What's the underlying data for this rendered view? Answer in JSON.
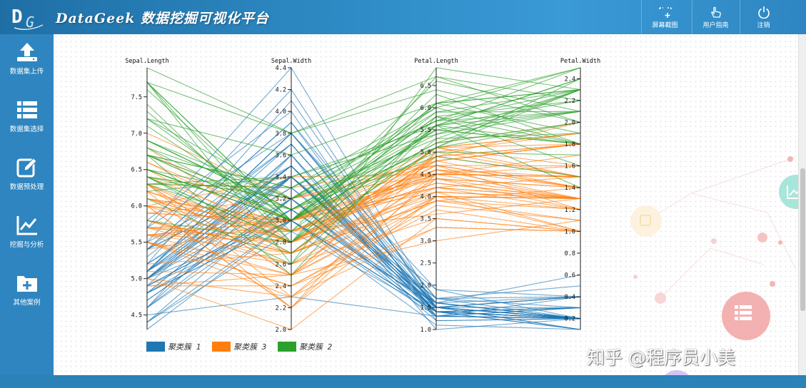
{
  "header": {
    "title": "DataGeek 数据挖掘可视化平台",
    "buttons": [
      {
        "label": "屏幕截图",
        "icon": "screenshot-icon"
      },
      {
        "label": "用户指南",
        "icon": "hand-pointer-icon"
      },
      {
        "label": "注销",
        "icon": "power-icon"
      }
    ]
  },
  "sidebar": {
    "items": [
      {
        "label": "数据集上传",
        "icon": "upload-icon"
      },
      {
        "label": "数据集选择",
        "icon": "list-icon"
      },
      {
        "label": "数据预处理",
        "icon": "edit-icon"
      },
      {
        "label": "挖掘与分析",
        "icon": "line-chart-icon"
      },
      {
        "label": "其他案例",
        "icon": "folder-plus-icon"
      }
    ]
  },
  "watermark": "知乎 @程序员小美",
  "chart_data": {
    "type": "parallel-coordinates",
    "dimensions": [
      {
        "name": "Sepal.Length",
        "range": [
          4.3,
          7.9
        ],
        "ticks": [
          4.5,
          5.0,
          5.5,
          6.0,
          6.5,
          7.0,
          7.5
        ],
        "decimals": 1
      },
      {
        "name": "Sepal.Width",
        "range": [
          2.0,
          4.4
        ],
        "ticks": [
          2.0,
          2.2,
          2.4,
          2.6,
          2.8,
          3.0,
          3.2,
          3.4,
          3.6,
          3.8,
          4.0,
          4.2,
          4.4
        ],
        "decimals": 1
      },
      {
        "name": "Petal.Length",
        "range": [
          1.0,
          6.9
        ],
        "ticks": [
          1.0,
          1.5,
          2.0,
          2.5,
          3.0,
          3.5,
          4.0,
          4.5,
          5.0,
          5.5,
          6.0,
          6.5
        ],
        "decimals": 1
      },
      {
        "name": "Petal.Width",
        "range": [
          0.1,
          2.5
        ],
        "ticks": [
          0.2,
          0.4,
          0.6,
          0.8,
          1.0,
          1.2,
          1.4,
          1.6,
          1.8,
          2.0,
          2.2,
          2.4
        ],
        "decimals": 1
      }
    ],
    "legend": [
      {
        "label": "聚类簇 1",
        "color": "#1f77b4"
      },
      {
        "label": "聚类簇 3",
        "color": "#ff7f0e"
      },
      {
        "label": "聚类簇 2",
        "color": "#2ca02c"
      }
    ],
    "series": [
      {
        "name": "聚类簇 1",
        "color": "#1f77b4",
        "values": [
          [
            5.1,
            3.5,
            1.4,
            0.2
          ],
          [
            4.9,
            3.0,
            1.4,
            0.2
          ],
          [
            4.7,
            3.2,
            1.3,
            0.2
          ],
          [
            4.6,
            3.1,
            1.5,
            0.2
          ],
          [
            5.0,
            3.6,
            1.4,
            0.2
          ],
          [
            5.4,
            3.9,
            1.7,
            0.4
          ],
          [
            4.6,
            3.4,
            1.4,
            0.3
          ],
          [
            5.0,
            3.4,
            1.5,
            0.2
          ],
          [
            4.4,
            2.9,
            1.4,
            0.2
          ],
          [
            4.9,
            3.1,
            1.5,
            0.1
          ],
          [
            5.4,
            3.7,
            1.5,
            0.2
          ],
          [
            4.8,
            3.4,
            1.6,
            0.2
          ],
          [
            4.8,
            3.0,
            1.4,
            0.1
          ],
          [
            4.3,
            3.0,
            1.1,
            0.1
          ],
          [
            5.8,
            4.0,
            1.2,
            0.2
          ],
          [
            5.7,
            4.4,
            1.5,
            0.4
          ],
          [
            5.4,
            3.9,
            1.3,
            0.4
          ],
          [
            5.1,
            3.5,
            1.4,
            0.3
          ],
          [
            5.7,
            3.8,
            1.7,
            0.3
          ],
          [
            5.1,
            3.8,
            1.5,
            0.3
          ],
          [
            5.4,
            3.4,
            1.7,
            0.2
          ],
          [
            5.1,
            3.7,
            1.5,
            0.4
          ],
          [
            4.6,
            3.6,
            1.0,
            0.2
          ],
          [
            5.1,
            3.3,
            1.7,
            0.5
          ],
          [
            4.8,
            3.4,
            1.9,
            0.2
          ],
          [
            5.0,
            3.0,
            1.6,
            0.2
          ],
          [
            5.0,
            3.4,
            1.6,
            0.4
          ],
          [
            5.2,
            3.5,
            1.5,
            0.2
          ],
          [
            5.2,
            3.4,
            1.4,
            0.2
          ],
          [
            4.7,
            3.2,
            1.6,
            0.2
          ],
          [
            4.8,
            3.1,
            1.6,
            0.2
          ],
          [
            5.4,
            3.4,
            1.5,
            0.4
          ],
          [
            5.2,
            4.1,
            1.5,
            0.1
          ],
          [
            5.5,
            4.2,
            1.4,
            0.2
          ],
          [
            4.9,
            3.1,
            1.5,
            0.2
          ],
          [
            5.0,
            3.2,
            1.2,
            0.2
          ],
          [
            5.5,
            3.5,
            1.3,
            0.2
          ],
          [
            4.9,
            3.6,
            1.4,
            0.1
          ],
          [
            4.4,
            3.0,
            1.3,
            0.2
          ],
          [
            5.1,
            3.4,
            1.5,
            0.2
          ],
          [
            5.0,
            3.5,
            1.3,
            0.3
          ],
          [
            4.5,
            2.3,
            1.3,
            0.3
          ],
          [
            4.4,
            3.2,
            1.3,
            0.2
          ],
          [
            5.0,
            3.5,
            1.6,
            0.6
          ],
          [
            5.1,
            3.8,
            1.9,
            0.4
          ],
          [
            4.8,
            3.0,
            1.4,
            0.3
          ],
          [
            5.1,
            3.8,
            1.6,
            0.2
          ],
          [
            4.6,
            3.2,
            1.4,
            0.2
          ],
          [
            5.3,
            3.7,
            1.5,
            0.2
          ],
          [
            5.0,
            3.3,
            1.4,
            0.2
          ]
        ]
      },
      {
        "name": "聚类簇 3",
        "color": "#ff7f0e",
        "values": [
          [
            7.0,
            3.2,
            4.7,
            1.4
          ],
          [
            6.4,
            3.2,
            4.5,
            1.5
          ],
          [
            5.5,
            2.3,
            4.0,
            1.3
          ],
          [
            6.5,
            2.8,
            4.6,
            1.5
          ],
          [
            5.7,
            2.8,
            4.5,
            1.3
          ],
          [
            6.3,
            3.3,
            4.7,
            1.6
          ],
          [
            4.9,
            2.4,
            3.3,
            1.0
          ],
          [
            6.6,
            2.9,
            4.6,
            1.3
          ],
          [
            5.2,
            2.7,
            3.9,
            1.4
          ],
          [
            5.0,
            2.0,
            3.5,
            1.0
          ],
          [
            5.9,
            3.0,
            4.2,
            1.5
          ],
          [
            6.0,
            2.2,
            4.0,
            1.0
          ],
          [
            6.1,
            2.9,
            4.7,
            1.4
          ],
          [
            5.6,
            2.9,
            3.6,
            1.3
          ],
          [
            6.7,
            3.1,
            4.4,
            1.4
          ],
          [
            5.6,
            3.0,
            4.5,
            1.5
          ],
          [
            5.8,
            2.7,
            4.1,
            1.0
          ],
          [
            6.2,
            2.2,
            4.5,
            1.5
          ],
          [
            5.6,
            2.5,
            3.9,
            1.1
          ],
          [
            5.9,
            3.2,
            4.8,
            1.8
          ],
          [
            6.1,
            2.8,
            4.0,
            1.3
          ],
          [
            6.3,
            2.5,
            4.9,
            1.5
          ],
          [
            6.1,
            2.8,
            4.7,
            1.2
          ],
          [
            6.4,
            2.9,
            4.3,
            1.3
          ],
          [
            6.6,
            3.0,
            4.4,
            1.4
          ],
          [
            6.8,
            2.8,
            4.8,
            1.4
          ],
          [
            6.0,
            2.9,
            4.5,
            1.5
          ],
          [
            5.7,
            2.6,
            3.5,
            1.0
          ],
          [
            5.5,
            2.4,
            3.8,
            1.1
          ],
          [
            5.5,
            2.4,
            3.7,
            1.0
          ],
          [
            5.8,
            2.7,
            3.9,
            1.2
          ],
          [
            6.0,
            2.7,
            5.1,
            1.6
          ],
          [
            5.4,
            3.0,
            4.5,
            1.5
          ],
          [
            6.0,
            3.4,
            4.5,
            1.6
          ],
          [
            6.3,
            2.3,
            4.4,
            1.3
          ],
          [
            5.6,
            3.0,
            4.1,
            1.3
          ],
          [
            5.5,
            2.5,
            4.0,
            1.3
          ],
          [
            5.5,
            2.6,
            4.4,
            1.2
          ],
          [
            6.1,
            3.0,
            4.6,
            1.4
          ],
          [
            5.8,
            2.6,
            4.0,
            1.2
          ],
          [
            5.0,
            2.3,
            3.3,
            1.0
          ],
          [
            5.6,
            2.7,
            4.2,
            1.3
          ],
          [
            5.7,
            3.0,
            4.2,
            1.2
          ],
          [
            5.7,
            2.9,
            4.2,
            1.3
          ],
          [
            6.2,
            2.9,
            4.3,
            1.3
          ],
          [
            5.1,
            2.5,
            3.0,
            1.1
          ],
          [
            5.7,
            2.8,
            4.1,
            1.3
          ],
          [
            5.8,
            2.7,
            5.1,
            1.9
          ],
          [
            4.9,
            2.5,
            4.5,
            1.7
          ],
          [
            6.0,
            2.2,
            5.0,
            1.5
          ],
          [
            6.3,
            2.7,
            4.9,
            1.8
          ],
          [
            6.2,
            2.8,
            4.8,
            1.8
          ],
          [
            6.1,
            3.0,
            4.9,
            1.8
          ],
          [
            6.3,
            2.8,
            5.1,
            1.5
          ],
          [
            6.0,
            3.0,
            4.8,
            1.8
          ],
          [
            5.8,
            2.7,
            5.1,
            1.9
          ],
          [
            6.3,
            2.5,
            5.0,
            1.9
          ],
          [
            5.9,
            3.0,
            5.1,
            1.8
          ],
          [
            5.6,
            2.8,
            4.9,
            2.0
          ],
          [
            6.5,
            3.0,
            5.2,
            2.0
          ]
        ]
      },
      {
        "name": "聚类簇 2",
        "color": "#2ca02c",
        "values": [
          [
            6.3,
            3.3,
            6.0,
            2.5
          ],
          [
            7.1,
            3.0,
            5.9,
            2.1
          ],
          [
            6.5,
            3.0,
            5.8,
            2.2
          ],
          [
            7.6,
            3.0,
            6.6,
            2.1
          ],
          [
            7.3,
            2.9,
            6.3,
            1.8
          ],
          [
            6.7,
            2.5,
            5.8,
            1.8
          ],
          [
            7.2,
            3.6,
            6.1,
            2.5
          ],
          [
            6.5,
            3.2,
            5.1,
            2.0
          ],
          [
            6.4,
            2.7,
            5.3,
            1.9
          ],
          [
            6.8,
            3.0,
            5.5,
            2.1
          ],
          [
            6.4,
            3.2,
            5.3,
            2.3
          ],
          [
            6.5,
            3.0,
            5.5,
            1.8
          ],
          [
            7.7,
            3.8,
            6.7,
            2.2
          ],
          [
            7.7,
            2.6,
            6.9,
            2.3
          ],
          [
            6.9,
            3.2,
            5.7,
            2.3
          ],
          [
            7.7,
            2.8,
            6.7,
            2.0
          ],
          [
            6.7,
            3.3,
            5.7,
            2.1
          ],
          [
            7.2,
            3.2,
            6.0,
            1.8
          ],
          [
            6.4,
            2.8,
            5.6,
            2.1
          ],
          [
            7.2,
            3.0,
            5.8,
            1.6
          ],
          [
            7.4,
            2.8,
            6.1,
            1.9
          ],
          [
            7.9,
            3.8,
            6.4,
            2.0
          ],
          [
            6.4,
            2.8,
            5.6,
            2.2
          ],
          [
            6.1,
            2.6,
            5.6,
            1.4
          ],
          [
            7.7,
            3.0,
            6.1,
            2.3
          ],
          [
            6.3,
            3.4,
            5.6,
            2.4
          ],
          [
            6.4,
            3.1,
            5.5,
            1.8
          ],
          [
            6.9,
            3.1,
            5.4,
            2.1
          ],
          [
            6.7,
            3.1,
            5.6,
            2.4
          ],
          [
            6.9,
            3.1,
            5.1,
            2.3
          ],
          [
            6.8,
            3.2,
            5.9,
            2.3
          ],
          [
            6.7,
            3.3,
            5.7,
            2.5
          ],
          [
            6.7,
            3.0,
            5.2,
            2.3
          ],
          [
            6.5,
            3.0,
            5.2,
            2.0
          ],
          [
            6.2,
            3.4,
            5.4,
            2.3
          ],
          [
            5.8,
            2.8,
            5.1,
            2.4
          ],
          [
            6.9,
            3.1,
            4.9,
            1.5
          ],
          [
            6.7,
            3.0,
            5.0,
            1.7
          ],
          [
            7.7,
            3.0,
            6.1,
            2.3
          ],
          [
            6.3,
            2.9,
            5.6,
            1.8
          ]
        ]
      }
    ]
  }
}
